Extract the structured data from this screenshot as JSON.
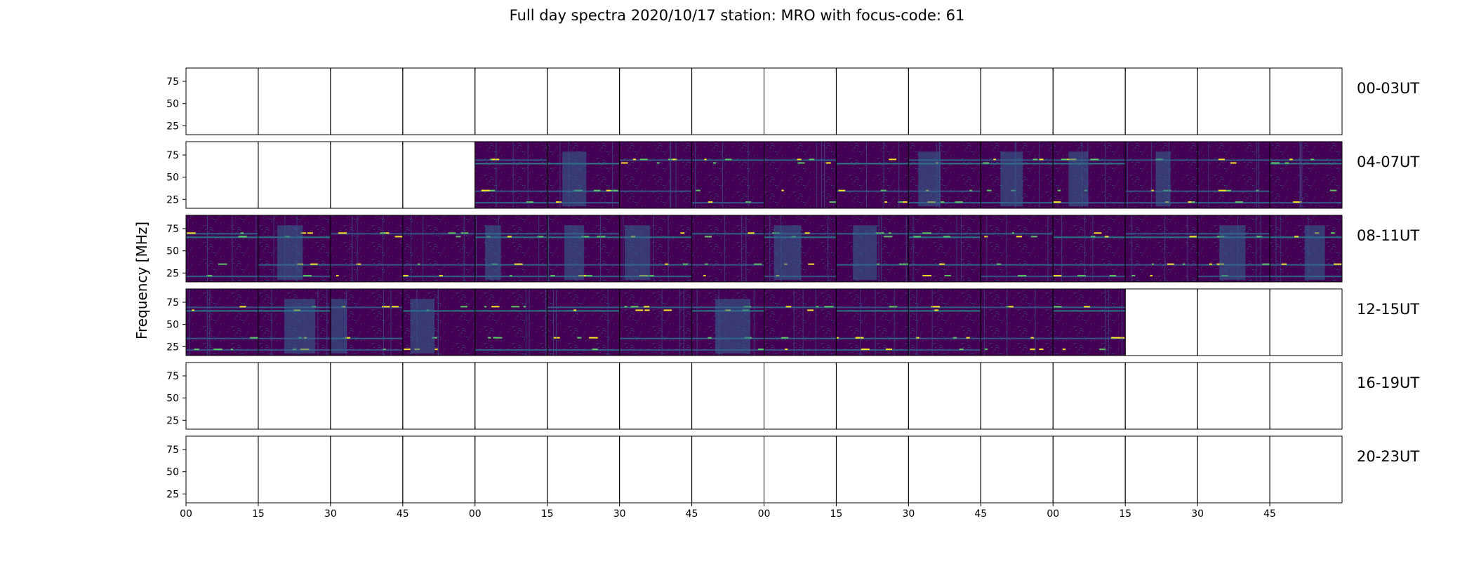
{
  "chart_data": {
    "type": "heatmap",
    "title": "Full day spectra 2020/10/17 station: MRO with focus-code: 61",
    "ylabel": "Frequency [MHz]",
    "xlabel": "",
    "yticks": [
      25,
      50,
      75
    ],
    "ylim": [
      15,
      90
    ],
    "xtick_labels": [
      "00",
      "15",
      "30",
      "45",
      "00",
      "15",
      "30",
      "45",
      "00",
      "15",
      "30",
      "45",
      "00",
      "15",
      "30",
      "45"
    ],
    "colormap": "viridis",
    "colors": {
      "low": "#440154",
      "mid": "#3b528b",
      "high": "#21918c",
      "peak": "#fde725"
    },
    "rows": [
      {
        "label": "00-03UT",
        "panels": [
          0,
          0,
          0,
          0,
          0,
          0,
          0,
          0,
          0,
          0,
          0,
          0,
          0,
          0,
          0,
          0
        ]
      },
      {
        "label": "04-07UT",
        "panels": [
          0,
          0,
          0,
          0,
          1,
          1,
          1,
          1,
          1,
          1,
          1,
          1,
          1,
          1,
          1,
          1
        ]
      },
      {
        "label": "08-11UT",
        "panels": [
          1,
          1,
          1,
          1,
          1,
          1,
          1,
          1,
          1,
          1,
          1,
          1,
          1,
          1,
          1,
          1
        ]
      },
      {
        "label": "12-15UT",
        "panels": [
          1,
          1,
          1,
          1,
          1,
          1,
          1,
          1,
          1,
          1,
          1,
          1,
          1,
          0,
          0,
          0
        ]
      },
      {
        "label": "16-19UT",
        "panels": [
          0,
          0,
          0,
          0,
          0,
          0,
          0,
          0,
          0,
          0,
          0,
          0,
          0,
          0,
          0,
          0
        ]
      },
      {
        "label": "20-23UT",
        "panels": [
          0,
          0,
          0,
          0,
          0,
          0,
          0,
          0,
          0,
          0,
          0,
          0,
          0,
          0,
          0,
          0
        ]
      }
    ],
    "bright_lines_mhz": [
      22,
      35,
      66,
      70
    ]
  }
}
